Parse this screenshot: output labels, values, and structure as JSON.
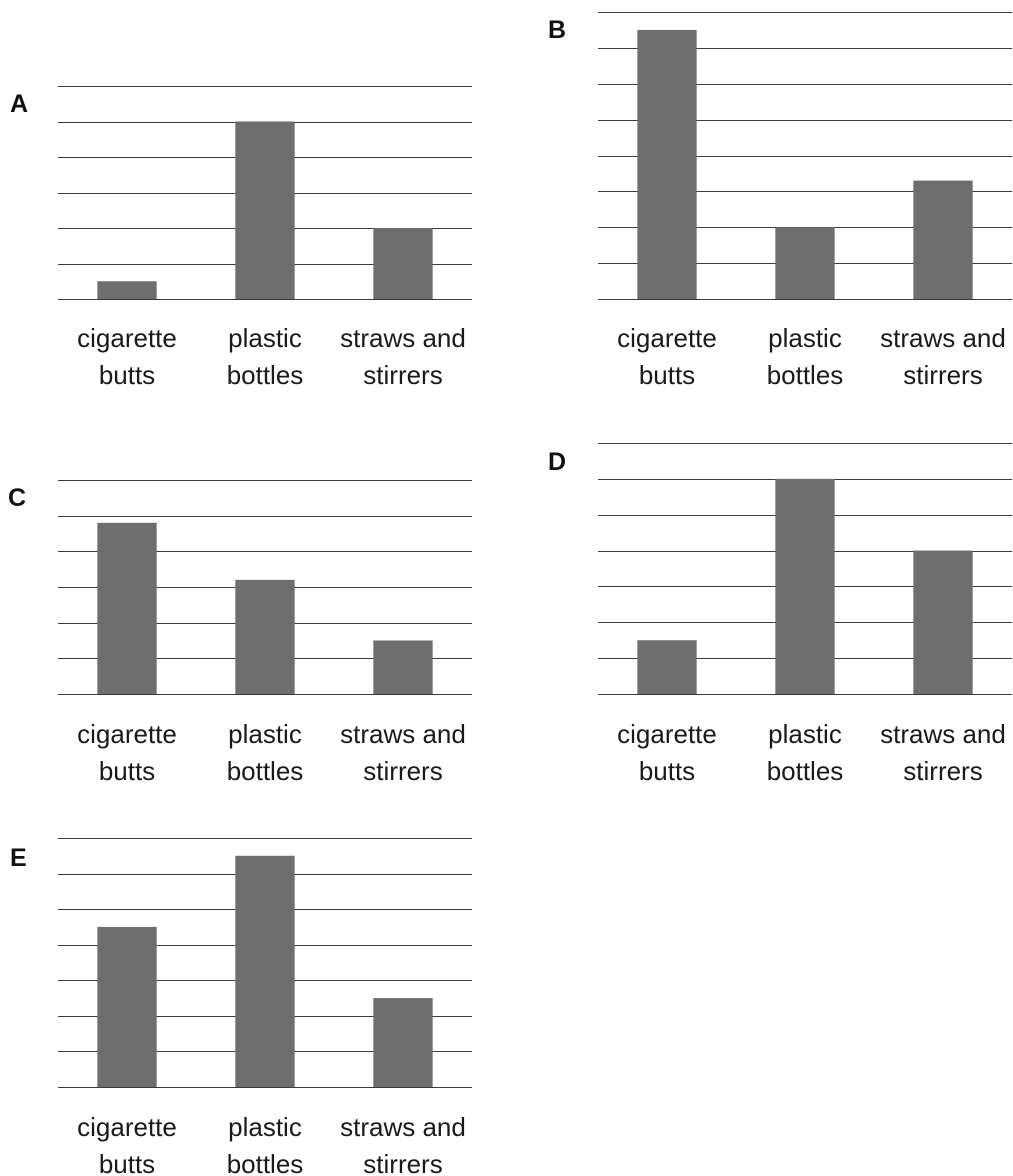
{
  "chart_data": [
    {
      "type": "bar",
      "panel_label": "A",
      "categories": [
        [
          "cigarette",
          "butts"
        ],
        [
          "plastic",
          "bottles"
        ],
        [
          "straws and",
          "stirrers"
        ]
      ],
      "values": [
        0.5,
        5,
        2
      ],
      "ylim": [
        0,
        6
      ],
      "grid": true,
      "bar_color": "#6e6e6e"
    },
    {
      "type": "bar",
      "panel_label": "B",
      "categories": [
        [
          "cigarette",
          "butts"
        ],
        [
          "plastic",
          "bottles"
        ],
        [
          "straws and",
          "stirrers"
        ]
      ],
      "values": [
        7.5,
        2,
        3.3
      ],
      "ylim": [
        0,
        8
      ],
      "grid": true,
      "bar_color": "#6e6e6e"
    },
    {
      "type": "bar",
      "panel_label": "C",
      "categories": [
        [
          "cigarette",
          "butts"
        ],
        [
          "plastic",
          "bottles"
        ],
        [
          "straws and",
          "stirrers"
        ]
      ],
      "values": [
        4.8,
        3.2,
        1.5
      ],
      "ylim": [
        0,
        6
      ],
      "grid": true,
      "bar_color": "#6e6e6e"
    },
    {
      "type": "bar",
      "panel_label": "D",
      "categories": [
        [
          "cigarette",
          "butts"
        ],
        [
          "plastic",
          "bottles"
        ],
        [
          "straws and",
          "stirrers"
        ]
      ],
      "values": [
        1.5,
        6,
        4
      ],
      "ylim": [
        0,
        7
      ],
      "grid": true,
      "bar_color": "#6e6e6e"
    },
    {
      "type": "bar",
      "panel_label": "E",
      "categories": [
        [
          "cigarette",
          "butts"
        ],
        [
          "plastic",
          "bottles"
        ],
        [
          "straws and",
          "stirrers"
        ]
      ],
      "values": [
        4.5,
        6.5,
        2.5
      ],
      "ylim": [
        0,
        7
      ],
      "grid": true,
      "bar_color": "#6e6e6e"
    }
  ]
}
